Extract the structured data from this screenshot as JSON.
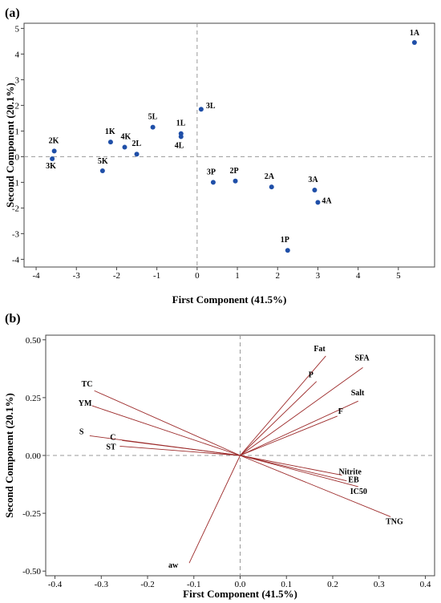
{
  "chart_data": [
    {
      "panel_label": "(a)",
      "type": "scatter",
      "xlabel": "First Component (41.5%)",
      "ylabel": "Second Component (20.1%)",
      "xlim": [
        -4.3,
        5.9
      ],
      "ylim": [
        -4.3,
        5.2
      ],
      "xticks": [
        -4,
        -3,
        -2,
        -1,
        0,
        1,
        2,
        3,
        4,
        5
      ],
      "yticks": [
        -4,
        -3,
        -2,
        -1,
        0,
        1,
        2,
        3,
        4,
        5
      ],
      "reference_lines": {
        "x": 0,
        "y": 0,
        "style": "dashed"
      },
      "color": "#1f4fa8",
      "points": [
        {
          "label": "1A",
          "x": 5.4,
          "y": 4.45
        },
        {
          "label": "2K",
          "x": -3.55,
          "y": 0.22
        },
        {
          "label": "3K",
          "x": -3.6,
          "y": -0.08
        },
        {
          "label": "1K",
          "x": -2.15,
          "y": 0.57
        },
        {
          "label": "4K",
          "x": -1.8,
          "y": 0.37
        },
        {
          "label": "5K",
          "x": -2.35,
          "y": -0.55
        },
        {
          "label": "2L",
          "x": -1.5,
          "y": 0.1
        },
        {
          "label": "5L",
          "x": -1.1,
          "y": 1.15
        },
        {
          "label": "1L",
          "x": -0.4,
          "y": 0.9
        },
        {
          "label": "4L",
          "x": -0.4,
          "y": 0.78
        },
        {
          "label": "3L",
          "x": 0.1,
          "y": 1.85
        },
        {
          "label": "3P",
          "x": 0.4,
          "y": -1.0
        },
        {
          "label": "2P",
          "x": 0.95,
          "y": -0.95
        },
        {
          "label": "2A",
          "x": 1.85,
          "y": -1.18
        },
        {
          "label": "3A",
          "x": 2.92,
          "y": -1.3
        },
        {
          "label": "4A",
          "x": 3.0,
          "y": -1.78
        },
        {
          "label": "1P",
          "x": 2.25,
          "y": -3.65
        }
      ]
    },
    {
      "panel_label": "(b)",
      "type": "loading",
      "xlabel": "First Component (41.5%)",
      "ylabel": "Second Component (20.1%)",
      "xlim": [
        -0.42,
        0.42
      ],
      "ylim": [
        -0.52,
        0.52
      ],
      "xticks": [
        -0.4,
        -0.3,
        -0.2,
        -0.1,
        0.0,
        0.1,
        0.2,
        0.3,
        0.4
      ],
      "yticks": [
        -0.5,
        -0.25,
        0.0,
        0.25,
        0.5
      ],
      "xtick_labels": [
        "-0.4",
        "-0.3",
        "-0.2",
        "-0.1",
        "0.0",
        "0.1",
        "0.2",
        "0.3",
        "0.4"
      ],
      "ytick_labels": [
        "-0.50",
        "-0.25",
        "0.00",
        "0.25",
        "0.50"
      ],
      "reference_lines": {
        "x": 0,
        "y": 0,
        "style": "dashed"
      },
      "color": "#9c2a2a",
      "vectors": [
        {
          "label": "Fat",
          "x": 0.185,
          "y": 0.43
        },
        {
          "label": "SFA",
          "x": 0.265,
          "y": 0.38
        },
        {
          "label": "P",
          "x": 0.165,
          "y": 0.32
        },
        {
          "label": "Salt",
          "x": 0.255,
          "y": 0.235
        },
        {
          "label": "F",
          "x": 0.21,
          "y": 0.17
        },
        {
          "label": "TC",
          "x": -0.315,
          "y": 0.28
        },
        {
          "label": "YM",
          "x": -0.32,
          "y": 0.215
        },
        {
          "label": "S",
          "x": -0.325,
          "y": 0.085
        },
        {
          "label": "C",
          "x": -0.255,
          "y": 0.065
        },
        {
          "label": "ST",
          "x": -0.26,
          "y": 0.04
        },
        {
          "label": "Nitrite",
          "x": 0.22,
          "y": -0.085
        },
        {
          "label": "EB",
          "x": 0.23,
          "y": -0.11
        },
        {
          "label": "IC50",
          "x": 0.255,
          "y": -0.135
        },
        {
          "label": "TNG",
          "x": 0.325,
          "y": -0.265
        },
        {
          "label": "aw",
          "x": -0.11,
          "y": -0.465
        }
      ]
    }
  ]
}
